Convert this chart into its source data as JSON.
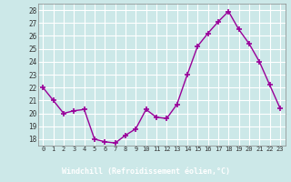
{
  "x": [
    0,
    1,
    2,
    3,
    4,
    5,
    6,
    7,
    8,
    9,
    10,
    11,
    12,
    13,
    14,
    15,
    16,
    17,
    18,
    19,
    20,
    21,
    22,
    23
  ],
  "y": [
    22,
    21,
    20,
    20.2,
    20.3,
    18,
    17.8,
    17.7,
    18.3,
    18.8,
    20.3,
    19.7,
    19.6,
    20.7,
    23,
    25.2,
    26.2,
    27.1,
    27.9,
    26.5,
    25.4,
    24,
    22.2,
    20.4
  ],
  "line_color": "#990099",
  "marker": "+",
  "marker_color": "#990099",
  "bg_color": "#cce8e8",
  "grid_color": "#ffffff",
  "xlabel": "Windchill (Refroidissement éolien,°C)",
  "xlabel_color": "#ffffff",
  "xlabel_bg": "#8800aa",
  "ylabel_ticks": [
    18,
    19,
    20,
    21,
    22,
    23,
    24,
    25,
    26,
    27,
    28
  ],
  "xlim": [
    -0.5,
    23.5
  ],
  "ylim": [
    17.5,
    28.5
  ],
  "xticks": [
    0,
    1,
    2,
    3,
    4,
    5,
    6,
    7,
    8,
    9,
    10,
    11,
    12,
    13,
    14,
    15,
    16,
    17,
    18,
    19,
    20,
    21,
    22,
    23
  ]
}
